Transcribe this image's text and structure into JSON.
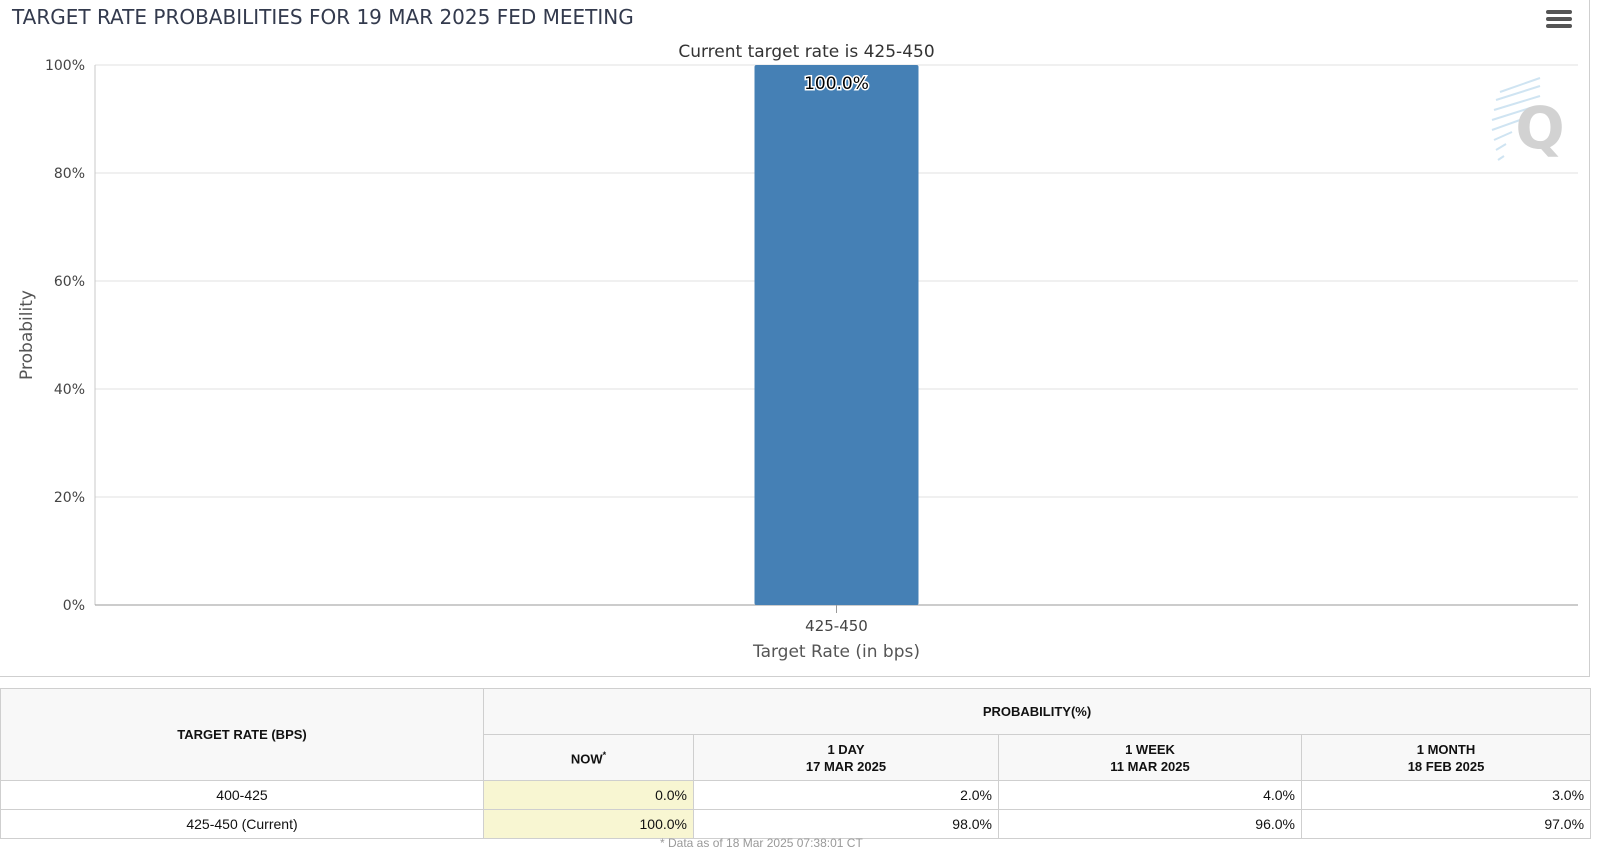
{
  "title": "TARGET RATE PROBABILITIES FOR 19 MAR 2025 FED MEETING",
  "menu_icon": "hamburger-menu-icon",
  "watermark": "Q",
  "chart_data": {
    "type": "bar",
    "subtitle": "Current target rate is 425-450",
    "categories": [
      "425-450"
    ],
    "values": [
      100.0
    ],
    "data_labels": [
      "100.0%"
    ],
    "xlabel": "Target Rate (in bps)",
    "ylabel": "Probability",
    "ylim": [
      0,
      100
    ],
    "yticks": [
      0,
      20,
      40,
      60,
      80,
      100
    ],
    "ytick_labels": [
      "0%",
      "20%",
      "40%",
      "60%",
      "80%",
      "100%"
    ],
    "grid": true,
    "legend": "none",
    "bar_color": "#4580b5"
  },
  "table": {
    "rate_header": "TARGET RATE (BPS)",
    "prob_header": "PROBABILITY(%)",
    "columns": [
      {
        "line1": "NOW",
        "line2": "",
        "mark": "*"
      },
      {
        "line1": "1 DAY",
        "line2": "17 MAR 2025"
      },
      {
        "line1": "1 WEEK",
        "line2": "11 MAR 2025"
      },
      {
        "line1": "1 MONTH",
        "line2": "18 FEB 2025"
      }
    ],
    "rows": [
      {
        "rate": "400-425",
        "values": [
          "0.0%",
          "2.0%",
          "4.0%",
          "3.0%"
        ]
      },
      {
        "rate": "425-450 (Current)",
        "values": [
          "100.0%",
          "98.0%",
          "96.0%",
          "97.0%"
        ]
      }
    ],
    "now_highlight": "#f8f6d2"
  },
  "footnote": "* Data as of 18 Mar 2025 07:38:01 CT"
}
